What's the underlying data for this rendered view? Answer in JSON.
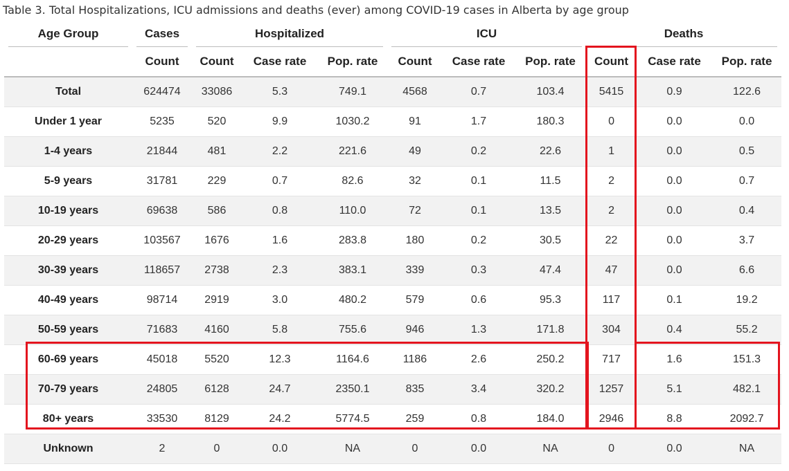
{
  "caption": "Table 3. Total Hospitalizations, ICU admissions and deaths (ever) among COVID-19 cases in Alberta by age group",
  "header_groups": {
    "age_group": "Age Group",
    "cases": "Cases",
    "hospitalized": "Hospitalized",
    "icu": "ICU",
    "deaths": "Deaths"
  },
  "subheaders": [
    "Count",
    "Count",
    "Case rate",
    "Pop. rate",
    "Count",
    "Case rate",
    "Pop. rate",
    "Count",
    "Case rate",
    "Pop. rate"
  ],
  "rows": [
    [
      "Total",
      "624474",
      "33086",
      "5.3",
      "749.1",
      "4568",
      "0.7",
      "103.4",
      "5415",
      "0.9",
      "122.6"
    ],
    [
      "Under 1 year",
      "5235",
      "520",
      "9.9",
      "1030.2",
      "91",
      "1.7",
      "180.3",
      "0",
      "0.0",
      "0.0"
    ],
    [
      "1-4 years",
      "21844",
      "481",
      "2.2",
      "221.6",
      "49",
      "0.2",
      "22.6",
      "1",
      "0.0",
      "0.5"
    ],
    [
      "5-9 years",
      "31781",
      "229",
      "0.7",
      "82.6",
      "32",
      "0.1",
      "11.5",
      "2",
      "0.0",
      "0.7"
    ],
    [
      "10-19 years",
      "69638",
      "586",
      "0.8",
      "110.0",
      "72",
      "0.1",
      "13.5",
      "2",
      "0.0",
      "0.4"
    ],
    [
      "20-29 years",
      "103567",
      "1676",
      "1.6",
      "283.8",
      "180",
      "0.2",
      "30.5",
      "22",
      "0.0",
      "3.7"
    ],
    [
      "30-39 years",
      "118657",
      "2738",
      "2.3",
      "383.1",
      "339",
      "0.3",
      "47.4",
      "47",
      "0.0",
      "6.6"
    ],
    [
      "40-49 years",
      "98714",
      "2919",
      "3.0",
      "480.2",
      "579",
      "0.6",
      "95.3",
      "117",
      "0.1",
      "19.2"
    ],
    [
      "50-59 years",
      "71683",
      "4160",
      "5.8",
      "755.6",
      "946",
      "1.3",
      "171.8",
      "304",
      "0.4",
      "55.2"
    ],
    [
      "60-69 years",
      "45018",
      "5520",
      "12.3",
      "1164.6",
      "1186",
      "2.6",
      "250.2",
      "717",
      "1.6",
      "151.3"
    ],
    [
      "70-79 years",
      "24805",
      "6128",
      "24.7",
      "2350.1",
      "835",
      "3.4",
      "320.2",
      "1257",
      "5.1",
      "482.1"
    ],
    [
      "80+ years",
      "33530",
      "8129",
      "24.2",
      "5774.5",
      "259",
      "0.8",
      "184.0",
      "2946",
      "8.8",
      "2092.7"
    ],
    [
      "Unknown",
      "2",
      "0",
      "0.0",
      "NA",
      "0",
      "0.0",
      "NA",
      "0",
      "0.0",
      "NA"
    ]
  ],
  "highlight_color": "#e3141e"
}
